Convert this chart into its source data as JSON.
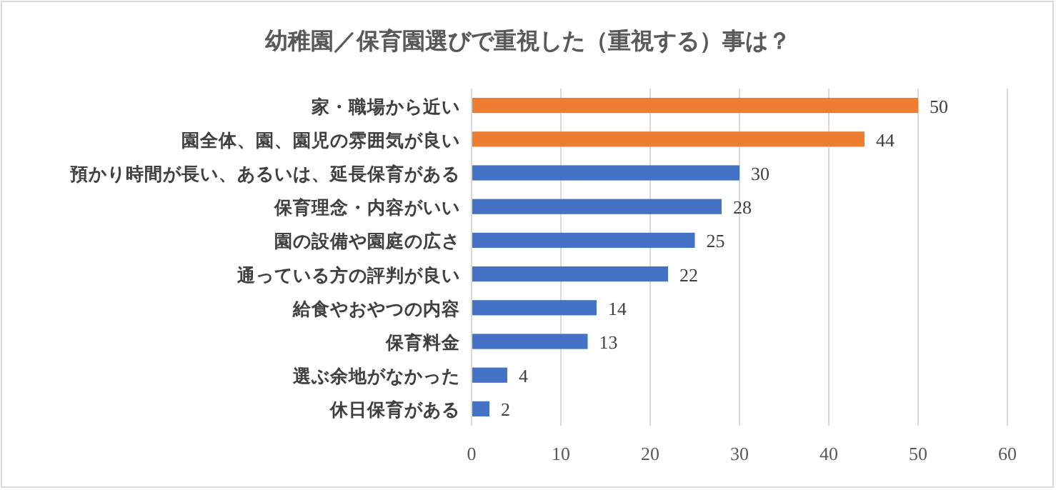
{
  "chart_data": {
    "type": "bar",
    "orientation": "horizontal",
    "title": "幼稚園／保育園選びで重視した（重視する）事は？",
    "categories": [
      "家・職場から近い",
      "園全体、園、園児の雰囲気が良い",
      "預かり時間が長い、あるいは、延長保育がある",
      "保育理念・内容がいい",
      "園の設備や園庭の広さ",
      "通っている方の評判が良い",
      "給食やおやつの内容",
      "保育料金",
      "選ぶ余地がなかった",
      "休日保育がある"
    ],
    "values": [
      50,
      44,
      30,
      28,
      25,
      22,
      14,
      13,
      4,
      2
    ],
    "colors": [
      "#ed7d31",
      "#ed7d31",
      "#4472c4",
      "#4472c4",
      "#4472c4",
      "#4472c4",
      "#4472c4",
      "#4472c4",
      "#4472c4",
      "#4472c4"
    ],
    "xlim": [
      0,
      60
    ],
    "xticks": [
      0,
      10,
      20,
      30,
      40,
      50,
      60
    ],
    "grid": "x",
    "data_labels": true
  }
}
